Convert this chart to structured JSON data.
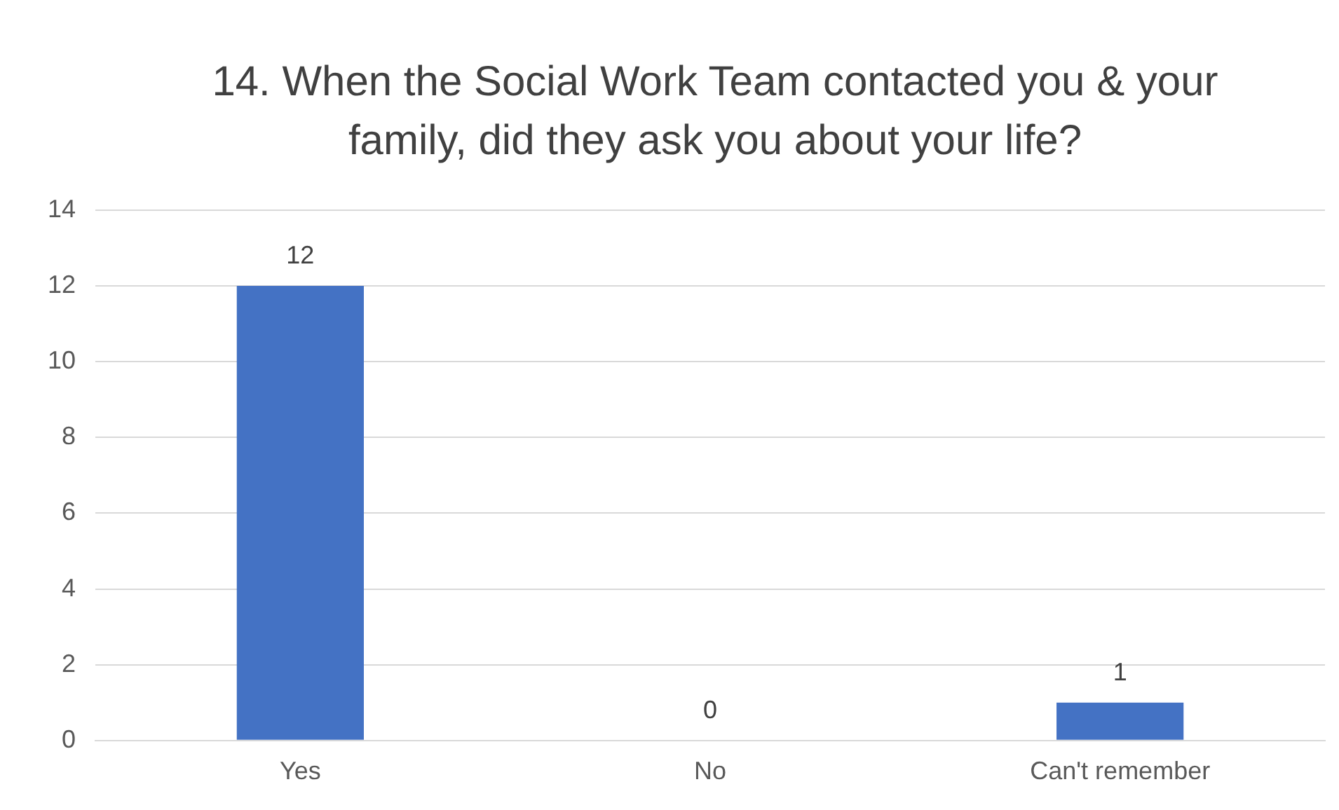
{
  "chart_data": {
    "type": "bar",
    "title": "14.  When the Social Work Team contacted you & your family, did they ask you about your life?",
    "categories": [
      "Yes",
      "No",
      "Can't remember"
    ],
    "values": [
      12,
      0,
      1
    ],
    "color": "#4472c4",
    "ylim": [
      0,
      14
    ],
    "yticks": [
      0,
      2,
      4,
      6,
      8,
      10,
      12,
      14
    ],
    "grid": "y",
    "data_labels": true,
    "legend": false
  }
}
